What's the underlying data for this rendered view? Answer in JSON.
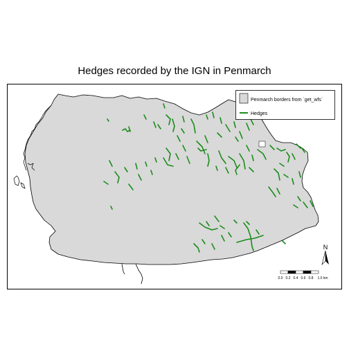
{
  "map": {
    "title": "Hedges recorded by the IGN in Penmarch",
    "legend": {
      "borders_label": "Penmarch borders from `get_wfs`",
      "hedges_label": "Hedges"
    },
    "scalebar": {
      "labels": [
        "0.0",
        "0.2",
        "0.4",
        "0.6",
        "0.8",
        "1.0 km"
      ]
    },
    "north_arrow_label": "N",
    "colors": {
      "commune_fill": "#d9d9d9",
      "border_stroke": "#000000",
      "hedge": "#1a8c1a",
      "background": "#ffffff"
    }
  }
}
